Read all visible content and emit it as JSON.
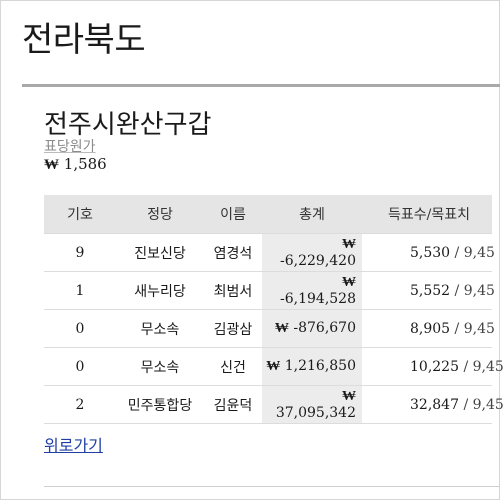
{
  "page": {
    "region_title": "전라북도",
    "district_title": "전주시완산구갑",
    "subtitle_link": "표당원가",
    "cost_per_vote": {
      "currency": "₩",
      "amount": "1,586"
    }
  },
  "table": {
    "headers": {
      "number": "기호",
      "party": "정당",
      "name": "이름",
      "total": "총계",
      "votes": "득표수/목표치"
    },
    "rows": [
      {
        "number": "9",
        "party": "진보신당",
        "name": "염경석",
        "total_currency": "₩",
        "total": "-6,229,420",
        "votes": "5,530",
        "sep": " / ",
        "target": "9,45"
      },
      {
        "number": "1",
        "party": "새누리당",
        "name": "최범서",
        "total_currency": "₩",
        "total": "-6,194,528",
        "votes": "5,552",
        "sep": " / ",
        "target": "9,45"
      },
      {
        "number": "0",
        "party": "무소속",
        "name": "김광삼",
        "total_currency": "₩",
        "total": "-876,670",
        "votes": "8,905",
        "sep": " / ",
        "target": "9,45"
      },
      {
        "number": "0",
        "party": "무소속",
        "name": "신건",
        "total_currency": "₩",
        "total": "1,216,850",
        "votes": "10,225",
        "sep": " / ",
        "target": "9,45"
      },
      {
        "number": "2",
        "party": "민주통합당",
        "name": "김윤덕",
        "total_currency": "₩",
        "total": "37,095,342",
        "votes": "32,847",
        "sep": " / ",
        "target": "9,45"
      }
    ]
  },
  "footer": {
    "back_link": "위로가기"
  }
}
